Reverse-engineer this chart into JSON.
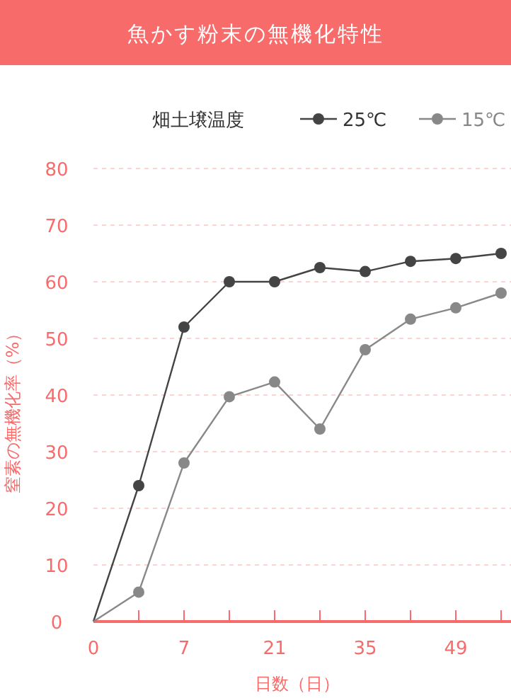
{
  "chart_data": {
    "type": "line",
    "title": "魚かす粉末の無機化特性",
    "xlabel": "日数（日）",
    "ylabel": "窒素の無機化率（%）",
    "legend_title": "畑土壌温度",
    "categories": [
      "0",
      null,
      "7",
      null,
      "21",
      null,
      "35",
      null,
      "49",
      null
    ],
    "series": [
      {
        "name": "25℃",
        "color": "#444444",
        "values": [
          0,
          24,
          52,
          60,
          60,
          62.5,
          61.8,
          63.6,
          64.1,
          65
        ]
      },
      {
        "name": "15℃",
        "color": "#888888",
        "values": [
          0,
          5.2,
          28,
          39.7,
          42.3,
          34,
          48,
          53.4,
          55.4,
          58
        ]
      }
    ],
    "ylim": [
      0,
      80
    ],
    "yticks": [
      0,
      10,
      20,
      30,
      40,
      50,
      60,
      70,
      80
    ],
    "grid": "y",
    "legend": "top",
    "marker": "circle",
    "line_style": "solid"
  }
}
